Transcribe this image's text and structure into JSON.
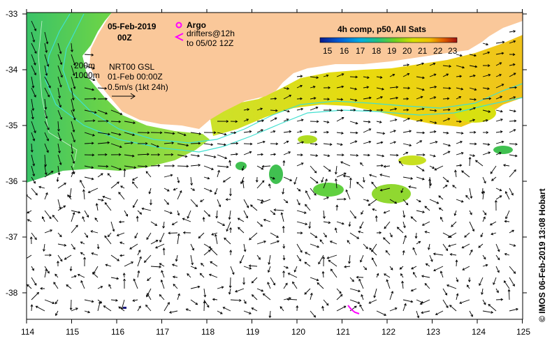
{
  "map": {
    "date": "05-Feb-2019",
    "hour": "00Z",
    "legend_argo": "Argo",
    "legend_drifters_l1": "drifters@12h",
    "legend_drifters_l2": "to 05/02 12Z",
    "isobath_1": "200m",
    "isobath_2": "1000m",
    "product": "NRT00 GSL",
    "product_date": "01-Feb 00:00Z",
    "scale_label": "0.5m/s (1kt 24h)",
    "colorbar_title": "4h comp, p50, All Sats",
    "colorbar_ticks": [
      "15",
      "16",
      "17",
      "18",
      "19",
      "20",
      "21",
      "22",
      "23"
    ],
    "side_credit": "© IMOS 06-Feb-2019 13:08 Hobart",
    "lat_ticks": [
      "-33",
      "-34",
      "-35",
      "-36",
      "-37",
      "-38"
    ],
    "lon_ticks": [
      "114",
      "115",
      "116",
      "117",
      "118",
      "119",
      "120",
      "121",
      "122",
      "123",
      "124",
      "125"
    ],
    "colors": {
      "land": "#fac89a",
      "isobath": "#40e0d0",
      "argo": "#ff00ff",
      "drifter": "#ff00ff",
      "ocean": "#ffffff"
    }
  }
}
